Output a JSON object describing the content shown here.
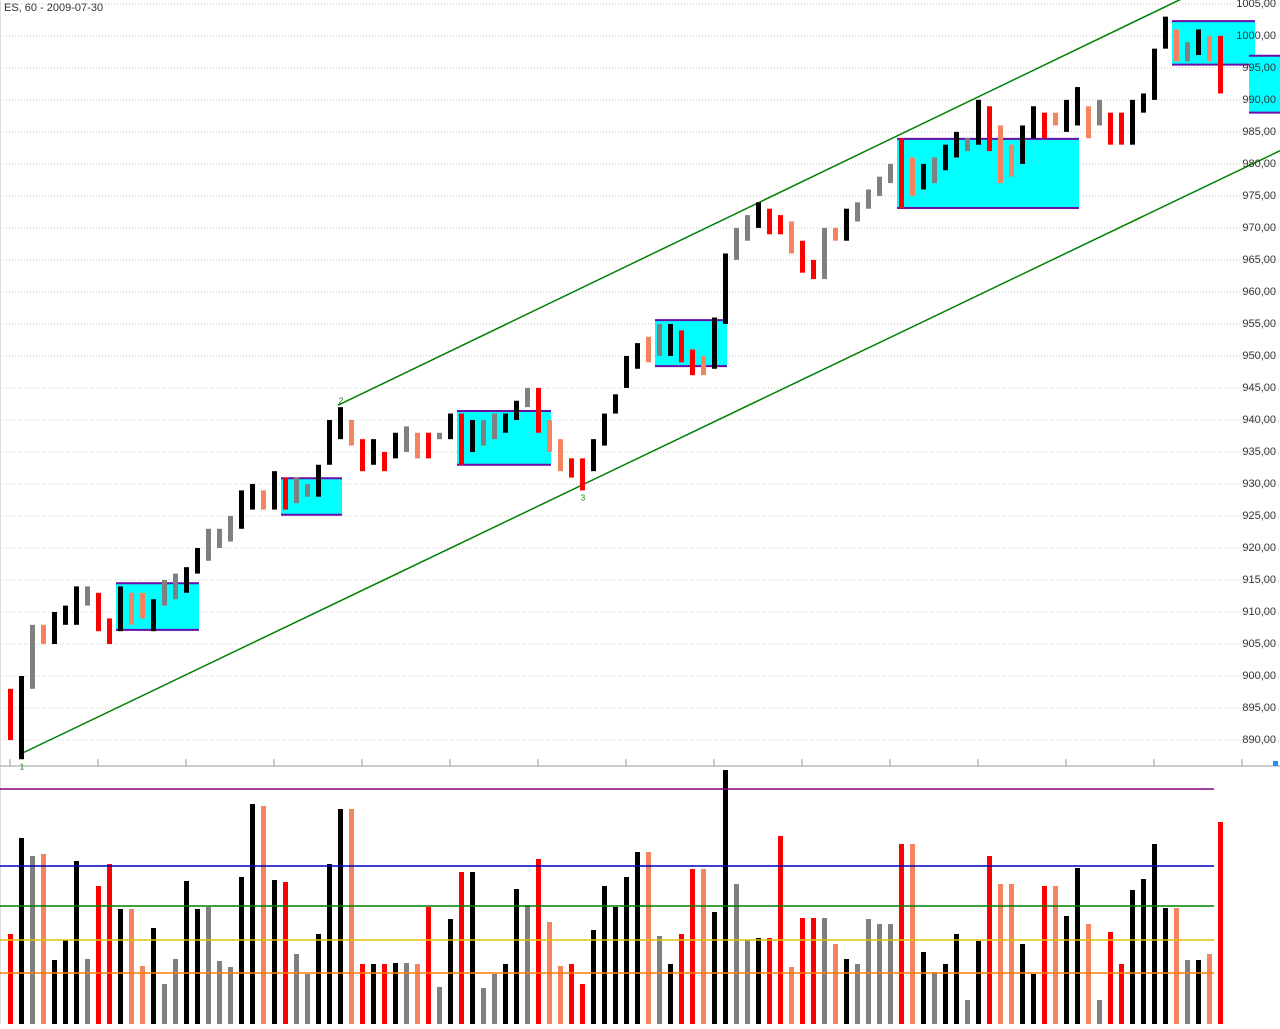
{
  "chart_data": {
    "type": "range-bar",
    "title": "ES, 60 - 2009-07-30",
    "ylim": [
      886.1,
      1005.6
    ],
    "yticks": [
      {
        "value": 890,
        "label": "890,00"
      },
      {
        "value": 895,
        "label": "895,00"
      },
      {
        "value": 900,
        "label": "900,00"
      },
      {
        "value": 905,
        "label": "905,00"
      },
      {
        "value": 910,
        "label": "910,00"
      },
      {
        "value": 915,
        "label": "915,00"
      },
      {
        "value": 920,
        "label": "920,00"
      },
      {
        "value": 925,
        "label": "925,00"
      },
      {
        "value": 930,
        "label": "930,00"
      },
      {
        "value": 935,
        "label": "935,00"
      },
      {
        "value": 940,
        "label": "940,00"
      },
      {
        "value": 945,
        "label": "945,00"
      },
      {
        "value": 950,
        "label": "950,00"
      },
      {
        "value": 955,
        "label": "955,00"
      },
      {
        "value": 960,
        "label": "960,00"
      },
      {
        "value": 965,
        "label": "965,00"
      },
      {
        "value": 970,
        "label": "970,00"
      },
      {
        "value": 975,
        "label": "975,00"
      },
      {
        "value": 980,
        "label": "980,00"
      },
      {
        "value": 985,
        "label": "985,00"
      },
      {
        "value": 990,
        "label": "990,00"
      },
      {
        "value": 995,
        "label": "995,00"
      },
      {
        "value": 1000,
        "label": "1000,00"
      },
      {
        "value": 1005,
        "label": "1005,00"
      }
    ],
    "grid": true,
    "lows": [
      890,
      887,
      898,
      905,
      905,
      908,
      908,
      911,
      907,
      905,
      907,
      908,
      909,
      907,
      911,
      912,
      913,
      916,
      918,
      920,
      921,
      923,
      926,
      926,
      926,
      926,
      927,
      928,
      928,
      933,
      937,
      936,
      932,
      933,
      932,
      934,
      935,
      934,
      934,
      937,
      937,
      933,
      935,
      936,
      937,
      938,
      940,
      942,
      938,
      935,
      932,
      931,
      929,
      932,
      936,
      941,
      945,
      948,
      949,
      950,
      950,
      949,
      947,
      947,
      948,
      955,
      965,
      968,
      970,
      969,
      969,
      966,
      963,
      962,
      962,
      968,
      968,
      971,
      973,
      975,
      977,
      973,
      975,
      976,
      977,
      979,
      981,
      982,
      983,
      982,
      977,
      978,
      980,
      984,
      984,
      986,
      985,
      986,
      984,
      986,
      983,
      983,
      983,
      988,
      990,
      998,
      996,
      996,
      997,
      996,
      991
    ],
    "highs": [
      898,
      900,
      908,
      908,
      910,
      911,
      914,
      914,
      913,
      909,
      914,
      913,
      913,
      912,
      915,
      916,
      917,
      920,
      923,
      923,
      925,
      929,
      930,
      929,
      932,
      931,
      931,
      930,
      933,
      940,
      942,
      940,
      937,
      937,
      935,
      938,
      939,
      938,
      938,
      938,
      941,
      941,
      940,
      940,
      941,
      941,
      943,
      945,
      945,
      940,
      937,
      934,
      934,
      937,
      941,
      944,
      950,
      952,
      953,
      955,
      955,
      954,
      951,
      950,
      956,
      966,
      970,
      972,
      974,
      973,
      972,
      971,
      968,
      965,
      970,
      970,
      973,
      974,
      976,
      978,
      980,
      984,
      981,
      980,
      981,
      983,
      985,
      984,
      990,
      989,
      986,
      983,
      986,
      989,
      988,
      988,
      990,
      992,
      989,
      990,
      988,
      988,
      990,
      991,
      998,
      1003,
      1001,
      999,
      1001,
      1000,
      1000
    ],
    "colors": [
      "#f00",
      "#000",
      "#808080",
      "#f4845f",
      "#000",
      "#000",
      "#000",
      "#808080",
      "#f00",
      "#f00",
      "#000",
      "#f4845f",
      "#f4845f",
      "#000",
      "#808080",
      "#808080",
      "#000",
      "#000",
      "#808080",
      "#808080",
      "#808080",
      "#000",
      "#000",
      "#f4845f",
      "#000",
      "#f00",
      "#808080",
      "#808080",
      "#000",
      "#000",
      "#000",
      "#f4845f",
      "#f00",
      "#000",
      "#f00",
      "#000",
      "#808080",
      "#f4845f",
      "#f00",
      "#808080",
      "#000",
      "#f00",
      "#000",
      "#808080",
      "#808080",
      "#000",
      "#000",
      "#808080",
      "#f00",
      "#f4845f",
      "#f4845f",
      "#f00",
      "#f00",
      "#000",
      "#000",
      "#000",
      "#000",
      "#000",
      "#f4845f",
      "#808080",
      "#000",
      "#f00",
      "#f00",
      "#f4845f",
      "#000",
      "#000",
      "#808080",
      "#808080",
      "#000",
      "#f00",
      "#f00",
      "#f4845f",
      "#f00",
      "#f00",
      "#808080",
      "#f4845f",
      "#000",
      "#808080",
      "#808080",
      "#808080",
      "#808080",
      "#f00",
      "#f4845f",
      "#000",
      "#808080",
      "#000",
      "#000",
      "#808080",
      "#000",
      "#f00",
      "#f4845f",
      "#f4845f",
      "#000",
      "#000",
      "#f00",
      "#f4845f",
      "#000",
      "#000",
      "#f4845f",
      "#808080",
      "#f00",
      "#f00",
      "#000",
      "#000",
      "#000",
      "#000",
      "#f4845f",
      "#808080",
      "#000",
      "#f4845f",
      "#f00"
    ],
    "volume": [
      90,
      186,
      168,
      170,
      64,
      84,
      163,
      65,
      138,
      160,
      115,
      115,
      58,
      96,
      40,
      65,
      143,
      115,
      117,
      63,
      57,
      147,
      220,
      218,
      144,
      142,
      70,
      50,
      90,
      160,
      215,
      215,
      60,
      60,
      60,
      61,
      61,
      60,
      117,
      37,
      105,
      152,
      152,
      36,
      50,
      60,
      135,
      119,
      165,
      102,
      58,
      60,
      40,
      94,
      138,
      117,
      147,
      172,
      172,
      88,
      60,
      90,
      155,
      155,
      112,
      254,
      140,
      84,
      86,
      86,
      188,
      57,
      106,
      106,
      106,
      80,
      65,
      60,
      105,
      100,
      100,
      180,
      180,
      72,
      52,
      60,
      90,
      24,
      83,
      168,
      140,
      140,
      80,
      50,
      138,
      138,
      108,
      156,
      100,
      24,
      92,
      60,
      134,
      145,
      180,
      116,
      116,
      64,
      64,
      70,
      202
    ],
    "vlim": [
      0,
      254
    ],
    "levels": [
      {
        "value": 235,
        "color": "#800080"
      },
      {
        "value": 158,
        "color": "#0000c0"
      },
      {
        "value": 118,
        "color": "#008000"
      },
      {
        "value": 84,
        "color": "#e0c000"
      },
      {
        "value": 51,
        "color": "#ff8000"
      }
    ],
    "trendlines": [
      {
        "points": [
          [
            30,
            942.3
          ],
          [
            106,
            1005.2
          ]
        ],
        "color": "#008000"
      },
      {
        "points": [
          [
            1,
            887.7
          ],
          [
            105,
            973.3
          ]
        ],
        "color": "#008000"
      }
    ],
    "boxes": [
      {
        "start": 10,
        "end": 17,
        "low": 907.2,
        "high": 914.5
      },
      {
        "start": 25,
        "end": 30,
        "low": 925.2,
        "high": 930.9
      },
      {
        "start": 41,
        "end": 49,
        "low": 933,
        "high": 941.4
      },
      {
        "start": 59,
        "end": 65,
        "low": 948.4,
        "high": 955.6
      },
      {
        "start": 81,
        "end": 97,
        "low": 973.1,
        "high": 983.9
      },
      {
        "start": 106,
        "end": 113,
        "low": 995.5,
        "high": 1002.3
      },
      {
        "start": 113,
        "end": 117,
        "low": 988,
        "high": 996.9
      }
    ],
    "annotations": [
      {
        "text": "1",
        "bar": 1,
        "price": 887
      },
      {
        "text": "2",
        "bar": 30,
        "price": 942
      },
      {
        "text": "3",
        "bar": 52,
        "price": 929
      }
    ]
  }
}
